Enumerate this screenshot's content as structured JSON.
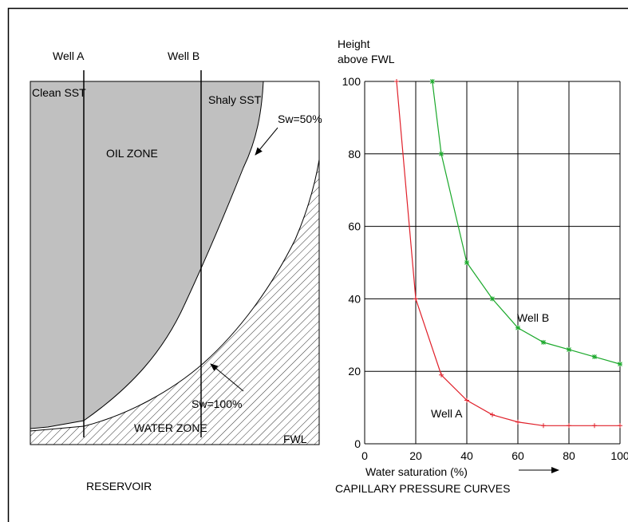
{
  "reservoir": {
    "wells": [
      "Well A",
      "Well B"
    ],
    "labels": {
      "clean": "Clean SST",
      "shaly": "Shaly SST",
      "sw50": "Sw=50%",
      "oil": "OIL ZONE",
      "sw100": "Sw=100%",
      "water": "WATER ZONE",
      "fwl": "FWL"
    },
    "title": "RESERVOIR"
  },
  "chart_data": {
    "type": "line",
    "title": "CAPILLARY PRESSURE CURVES",
    "xlabel": "Water saturation (%)",
    "ylabel": [
      "Height",
      "above FWL"
    ],
    "xlim": [
      0,
      100
    ],
    "ylim": [
      0,
      100
    ],
    "xticks": [
      0,
      20,
      40,
      60,
      80,
      100
    ],
    "yticks": [
      0,
      20,
      40,
      60,
      80,
      100
    ],
    "grid": true,
    "series": [
      {
        "name": "Well A",
        "color": "#e0202a",
        "x": [
          12.5,
          20,
          30,
          40,
          50,
          60,
          70,
          80,
          90,
          100
        ],
        "values": [
          100,
          40,
          19,
          12,
          8,
          6,
          5,
          5,
          5,
          5
        ]
      },
      {
        "name": "Well B",
        "color": "#1aa82a",
        "x": [
          26.5,
          30,
          40,
          50,
          60,
          70,
          80,
          90,
          100
        ],
        "values": [
          100,
          80,
          50,
          40,
          32,
          28,
          26,
          24,
          22
        ]
      }
    ]
  }
}
